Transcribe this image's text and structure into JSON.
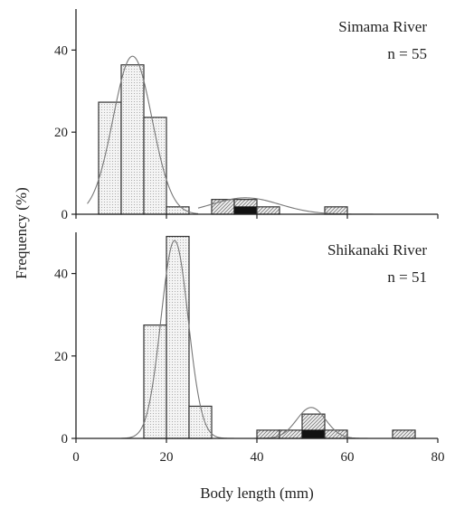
{
  "figure": {
    "xlabel": "Body length (mm)",
    "ylabel": "Frequency (%)"
  },
  "chart_data": [
    {
      "type": "bar",
      "panel_label": "Simama River",
      "n_label": "n = 55",
      "xlim": [
        0,
        80
      ],
      "ylim": [
        0,
        50
      ],
      "xticks": [
        0,
        20,
        40,
        60,
        80
      ],
      "yticks": [
        0,
        20,
        40
      ],
      "bin_width": 5,
      "bars": [
        {
          "x0": 5,
          "value": 27.3,
          "pattern": "dots"
        },
        {
          "x0": 10,
          "value": 36.4,
          "pattern": "dots"
        },
        {
          "x0": 15,
          "value": 23.6,
          "pattern": "dots"
        },
        {
          "x0": 20,
          "value": 1.8,
          "pattern": "dots"
        },
        {
          "x0": 30,
          "value": 3.6,
          "pattern": "hatch"
        },
        {
          "x0": 35,
          "value": 3.6,
          "pattern": "hatch",
          "black_value": 1.8
        },
        {
          "x0": 40,
          "value": 1.8,
          "pattern": "hatch"
        },
        {
          "x0": 55,
          "value": 1.8,
          "pattern": "hatch"
        }
      ],
      "curves": [
        {
          "mean": 12.5,
          "sd": 4.3,
          "peak": 38.5,
          "range": [
            2.5,
            27
          ]
        },
        {
          "mean": 37.5,
          "sd": 7.5,
          "peak": 4.0,
          "range": [
            27,
            72
          ]
        }
      ],
      "colors": {
        "black_fill": "#111111",
        "frame": "#222222"
      }
    },
    {
      "type": "bar",
      "panel_label": "Shikanaki River",
      "n_label": "n = 51",
      "xlim": [
        0,
        80
      ],
      "ylim": [
        0,
        50
      ],
      "xticks": [
        0,
        20,
        40,
        60,
        80
      ],
      "yticks": [
        0,
        20,
        40
      ],
      "bin_width": 5,
      "bars": [
        {
          "x0": 15,
          "value": 27.5,
          "pattern": "dots"
        },
        {
          "x0": 20,
          "value": 49.0,
          "pattern": "dots"
        },
        {
          "x0": 25,
          "value": 7.8,
          "pattern": "dots"
        },
        {
          "x0": 40,
          "value": 2.0,
          "pattern": "hatch"
        },
        {
          "x0": 45,
          "value": 2.0,
          "pattern": "hatch"
        },
        {
          "x0": 50,
          "value": 5.9,
          "pattern": "hatch",
          "black_value": 2.0
        },
        {
          "x0": 55,
          "value": 2.0,
          "pattern": "hatch"
        },
        {
          "x0": 70,
          "value": 2.0,
          "pattern": "hatch"
        }
      ],
      "curves": [
        {
          "mean": 21.8,
          "sd": 3.0,
          "peak": 48.0,
          "range": [
            10,
            38
          ]
        },
        {
          "mean": 52.0,
          "sd": 3.2,
          "peak": 7.5,
          "range": [
            38,
            76
          ]
        }
      ],
      "colors": {
        "black_fill": "#111111",
        "frame": "#222222"
      }
    }
  ]
}
